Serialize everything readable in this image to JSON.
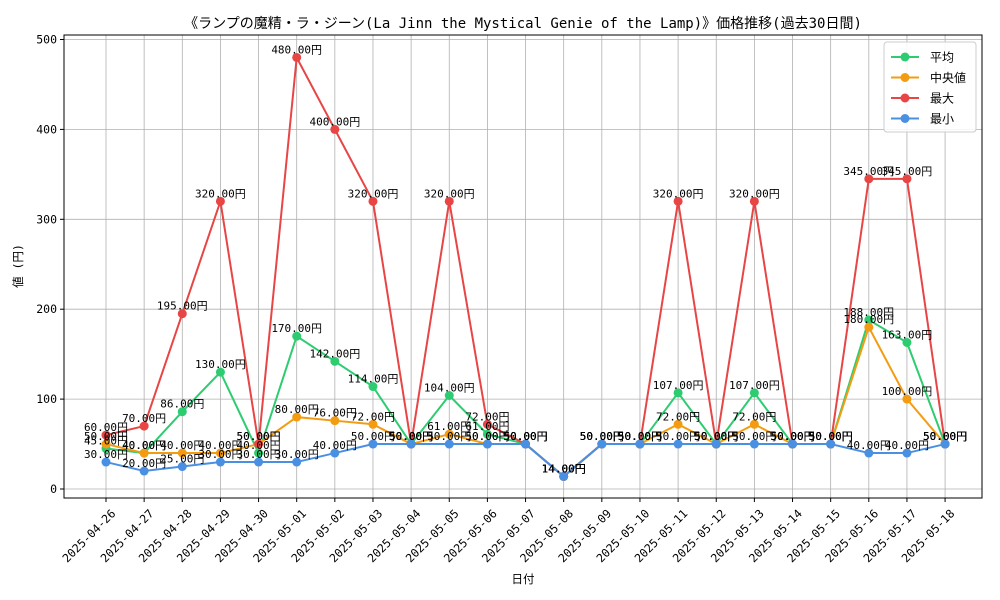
{
  "chart_data": {
    "type": "line",
    "title": "《ランプの魔精・ラ・ジーン(La Jinn the Mystical Genie of the Lamp)》価格推移(過去30日間)",
    "xlabel": "日付",
    "ylabel": "値 (円)",
    "ylim": [
      -10,
      505
    ],
    "yticks": [
      0,
      100,
      200,
      300,
      400,
      500
    ],
    "grid": true,
    "legend_position": "top-right",
    "label_suffix": "円",
    "categories": [
      "2025-04-26",
      "2025-04-27",
      "2025-04-28",
      "2025-04-29",
      "2025-04-30",
      "2025-05-01",
      "2025-05-02",
      "2025-05-03",
      "2025-05-04",
      "2025-05-05",
      "2025-05-06",
      "2025-05-07",
      "2025-05-08",
      "2025-05-09",
      "2025-05-10",
      "2025-05-11",
      "2025-05-12",
      "2025-05-13",
      "2025-05-14",
      "2025-05-15",
      "2025-05-16",
      "2025-05-17",
      "2025-05-18"
    ],
    "series": [
      {
        "name": "平均",
        "color": "#2ecc71",
        "values": [
          45,
          40,
          86,
          130,
          40,
          170,
          142,
          114,
          50,
          104,
          61,
          50,
          14,
          50,
          50,
          107,
          50,
          107,
          50,
          50,
          188,
          163,
          50
        ]
      },
      {
        "name": "中央値",
        "color": "#f39c12",
        "values": [
          50,
          40,
          40,
          40,
          50,
          80,
          76,
          72,
          50,
          61,
          50,
          50,
          14,
          50,
          50,
          72,
          50,
          72,
          50,
          50,
          180,
          100,
          50
        ]
      },
      {
        "name": "最大",
        "color": "#e84545",
        "values": [
          60,
          70,
          195,
          320,
          50,
          480,
          400,
          320,
          50,
          320,
          72,
          50,
          14,
          50,
          50,
          320,
          50,
          320,
          50,
          50,
          345,
          345,
          50
        ]
      },
      {
        "name": "最小",
        "color": "#4a90e2",
        "values": [
          30,
          20,
          25,
          30,
          30,
          30,
          40,
          50,
          50,
          50,
          50,
          50,
          14,
          50,
          50,
          50,
          50,
          50,
          50,
          50,
          40,
          40,
          50
        ]
      }
    ]
  }
}
